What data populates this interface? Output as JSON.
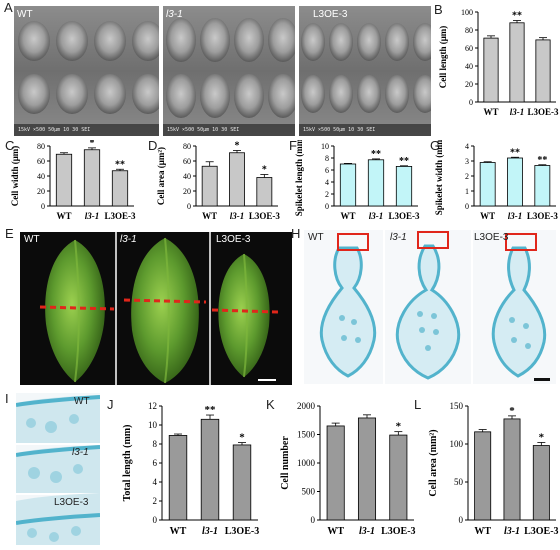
{
  "panels": {
    "A": {
      "letter": "A",
      "labels": [
        "WT",
        "l3-1",
        "L3OE-3"
      ],
      "scale_texts": [
        "15kV  ×500  50μm  10 30 SEI",
        "15kV  ×500  50μm  10 30 SEI",
        "15kV  ×500  50μm  10 30 SEI"
      ]
    },
    "E": {
      "letter": "E",
      "labels": [
        "WT",
        "l3-1",
        "L3OE-3"
      ]
    },
    "H": {
      "letter": "H",
      "labels": [
        "WT",
        "l3-1",
        "L3OE-3"
      ]
    },
    "I": {
      "letter": "I",
      "labels": [
        "WT",
        "l3-1",
        "L3OE-3"
      ]
    }
  },
  "colors": {
    "gray_bar": "#c8c8c8",
    "cyan_bar": "#c2f5f8",
    "dark_gray_bar": "#9a9a9a",
    "seed_green": "#5d9a2e",
    "dashed_red": "#e0261b",
    "box_red": "#e0261b",
    "stain_blue": "#52b3cc"
  },
  "chart_data": [
    {
      "panel": "B",
      "type": "bar",
      "categories": [
        "WT",
        "l3-1",
        "L3OE-3"
      ],
      "values": [
        71,
        88,
        69
      ],
      "errors": [
        2.5,
        2.5,
        2.5
      ],
      "sig": [
        "",
        "**",
        ""
      ],
      "ylabel": "Cell length (μm)",
      "ylim": [
        0,
        100
      ],
      "yticks": [
        0,
        20,
        40,
        60,
        80,
        100
      ],
      "color": "gray_bar"
    },
    {
      "panel": "C",
      "type": "bar",
      "categories": [
        "WT",
        "l3-1",
        "L3OE-3"
      ],
      "values": [
        69,
        75,
        47
      ],
      "errors": [
        2,
        2.5,
        2
      ],
      "sig": [
        "",
        "*",
        "**"
      ],
      "ylabel": "Cell width (μm)",
      "ylim": [
        0,
        80
      ],
      "yticks": [
        0,
        20,
        40,
        60,
        80
      ],
      "color": "gray_bar"
    },
    {
      "panel": "D",
      "type": "bar",
      "categories": [
        "WT",
        "l3-1",
        "L3OE-3"
      ],
      "values": [
        53,
        71,
        38
      ],
      "errors": [
        6,
        3,
        4
      ],
      "sig": [
        "",
        "*",
        "*"
      ],
      "ylabel": "Cell area (μm²)",
      "ylim": [
        0,
        80
      ],
      "yticks": [
        0,
        20,
        40,
        60,
        80
      ],
      "color": "gray_bar"
    },
    {
      "panel": "F",
      "type": "bar",
      "categories": [
        "WT",
        "l3-1",
        "L3OE-3"
      ],
      "values": [
        7.0,
        7.7,
        6.6
      ],
      "errors": [
        0.1,
        0.15,
        0.1
      ],
      "sig": [
        "",
        "**",
        "**"
      ],
      "ylabel": "Spikelet length (mm)",
      "ylim": [
        0,
        10
      ],
      "yticks": [
        0,
        2,
        4,
        6,
        8,
        10
      ],
      "color": "cyan_bar"
    },
    {
      "panel": "G",
      "type": "bar",
      "categories": [
        "WT",
        "l3-1",
        "L3OE-3"
      ],
      "values": [
        2.9,
        3.2,
        2.7
      ],
      "errors": [
        0.05,
        0.05,
        0.05
      ],
      "sig": [
        "",
        "**",
        "**"
      ],
      "ylabel": "Spikelet width (mm)",
      "ylim": [
        0,
        4
      ],
      "yticks": [
        0,
        1,
        2,
        3,
        4
      ],
      "color": "cyan_bar"
    },
    {
      "panel": "J",
      "type": "bar",
      "categories": [
        "WT",
        "l3-1",
        "L3OE-3"
      ],
      "values": [
        8.9,
        10.6,
        7.9
      ],
      "errors": [
        0.15,
        0.45,
        0.25
      ],
      "sig": [
        "",
        "**",
        "*"
      ],
      "ylabel": "Total length (mm)",
      "ylim": [
        0,
        12
      ],
      "yticks": [
        0,
        2,
        4,
        6,
        8,
        10,
        12
      ],
      "color": "dark_gray_bar"
    },
    {
      "panel": "K",
      "type": "bar",
      "categories": [
        "WT",
        "l3-1",
        "L3OE-3"
      ],
      "values": [
        1650,
        1790,
        1490
      ],
      "errors": [
        50,
        55,
        60
      ],
      "sig": [
        "",
        "",
        "*"
      ],
      "ylabel": "Cell number",
      "ylim": [
        0,
        2000
      ],
      "yticks": [
        0,
        500,
        1000,
        1500,
        2000
      ],
      "color": "dark_gray_bar"
    },
    {
      "panel": "L",
      "type": "bar",
      "categories": [
        "WT",
        "l3-1",
        "L3OE-3"
      ],
      "values": [
        116,
        133,
        98
      ],
      "errors": [
        3,
        4,
        4
      ],
      "sig": [
        "",
        "*",
        "*"
      ],
      "ylabel": "Cell area (mm²)",
      "ylim": [
        0,
        150
      ],
      "yticks": [
        0,
        50,
        100,
        150
      ],
      "color": "dark_gray_bar"
    }
  ]
}
